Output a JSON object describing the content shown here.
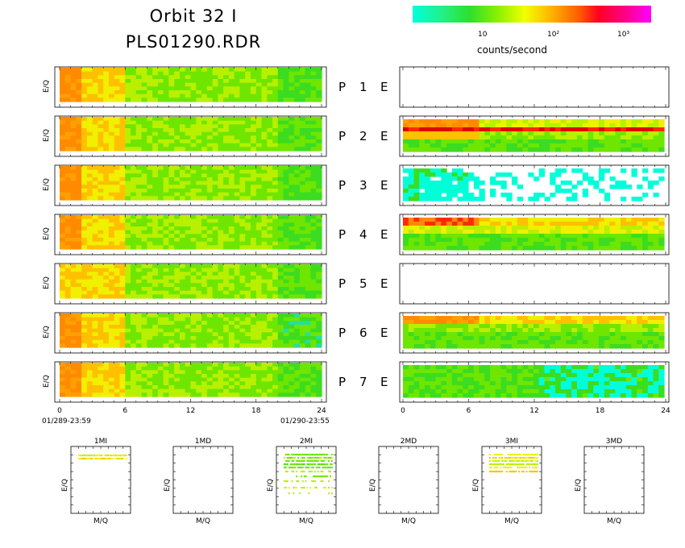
{
  "header": {
    "title_line1": "Orbit 32 I",
    "title_line2": "PLS01290.RDR"
  },
  "colorbar": {
    "ticks": [
      "10",
      "10²",
      "10³"
    ],
    "label": "counts/second",
    "colors": [
      "#00ffdd",
      "#2ee02c",
      "#f2ff00",
      "#ff5a00",
      "#ff0020",
      "#ff00ff"
    ]
  },
  "chart_data": [
    {
      "type": "heatmap",
      "group": "P",
      "panels": [
        "1",
        "2",
        "3",
        "4",
        "5",
        "6",
        "7"
      ],
      "ylabel": "E/Q",
      "xticks": [
        "0",
        "6",
        "12",
        "18",
        "24"
      ],
      "xlim": [
        0,
        24
      ],
      "start_label": "01/289-23:59",
      "end_label": "01/290-23:55"
    },
    {
      "type": "heatmap",
      "group": "E",
      "panels": [
        "1",
        "2",
        "3",
        "4",
        "5",
        "6",
        "7"
      ],
      "empty_panels": [
        "1",
        "5"
      ],
      "xticks": [
        "0",
        "6",
        "12",
        "18",
        "24"
      ],
      "xlim": [
        0,
        24
      ]
    },
    {
      "type": "scatter",
      "group": "mass",
      "panels": [
        "1MI",
        "1MD",
        "2MI",
        "2MD",
        "3MI",
        "3MD"
      ],
      "empty_panels": [
        "1MD",
        "2MD",
        "3MD"
      ],
      "xlabel": "M/Q",
      "ylabel": "E/Q"
    }
  ]
}
